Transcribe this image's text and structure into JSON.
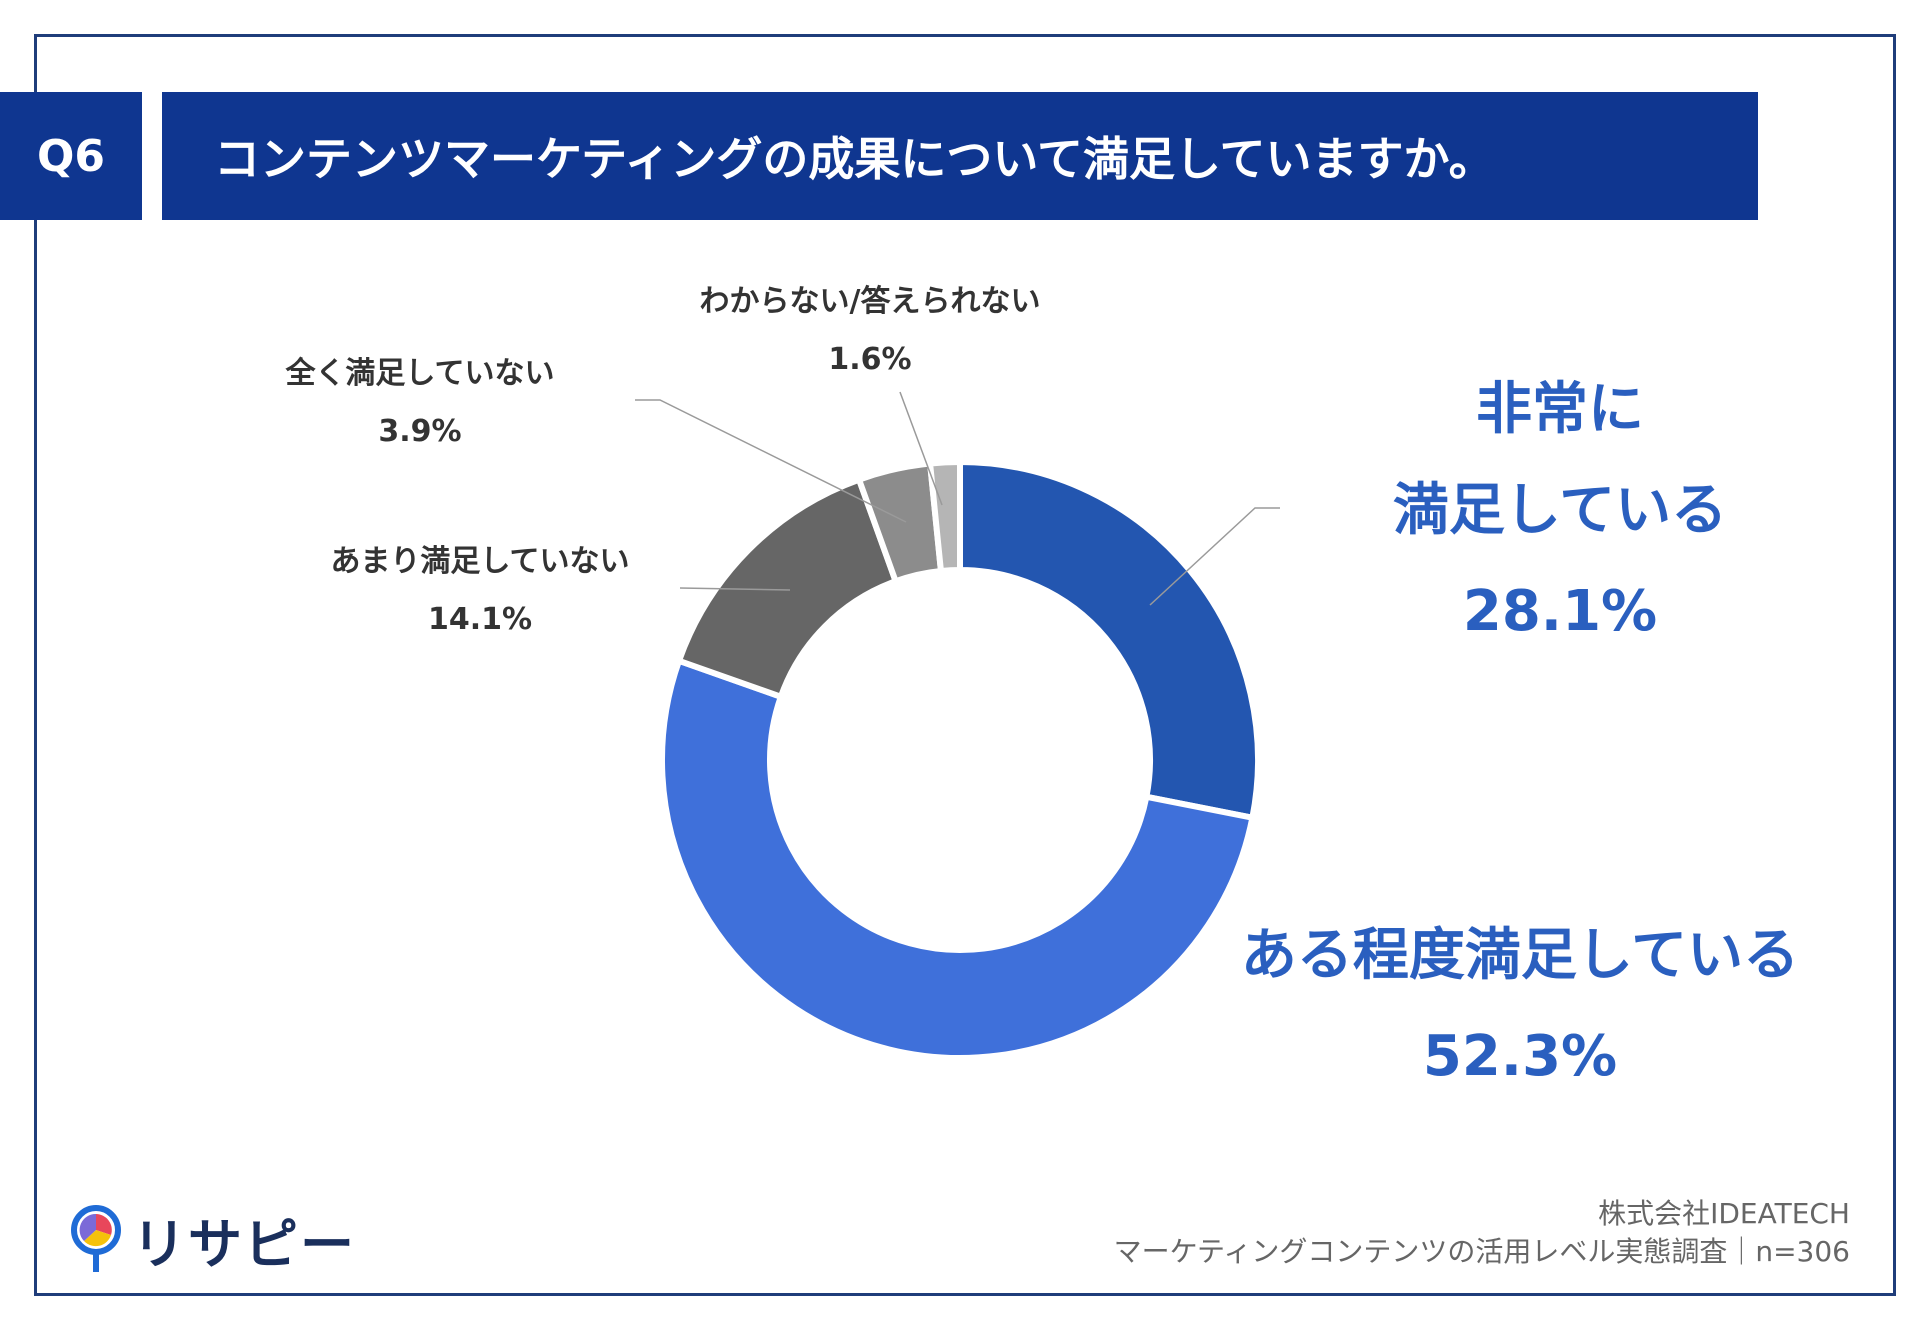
{
  "question": {
    "number": "Q6",
    "title": "コンテンツマーケティングの成果について満足していますか。"
  },
  "chart_data": {
    "type": "donut",
    "categories": [
      "非常に満足している",
      "ある程度満足している",
      "あまり満足していない",
      "全く満足していない",
      "わからない/答えられない"
    ],
    "values": [
      28.1,
      52.3,
      14.1,
      3.9,
      1.6
    ],
    "unit": "%",
    "colors": [
      "#2356b0",
      "#3f70da",
      "#666666",
      "#8c8c8c",
      "#b5b5b5"
    ],
    "labels": [
      {
        "lines": [
          "非常に",
          "満足している"
        ],
        "pct": "28.1%"
      },
      {
        "lines": [
          "ある程度満足している"
        ],
        "pct": "52.3%"
      },
      {
        "lines": [
          "あまり満足していない"
        ],
        "pct": "14.1%"
      },
      {
        "lines": [
          "全く満足していない"
        ],
        "pct": "3.9%"
      },
      {
        "lines": [
          "わからない/答えられない"
        ],
        "pct": "1.6%"
      }
    ]
  },
  "footer": {
    "logo_text": "リサピー",
    "company": "株式会社IDEATECH",
    "survey": "マーケティングコンテンツの活用レベル実態調査｜n=306"
  }
}
